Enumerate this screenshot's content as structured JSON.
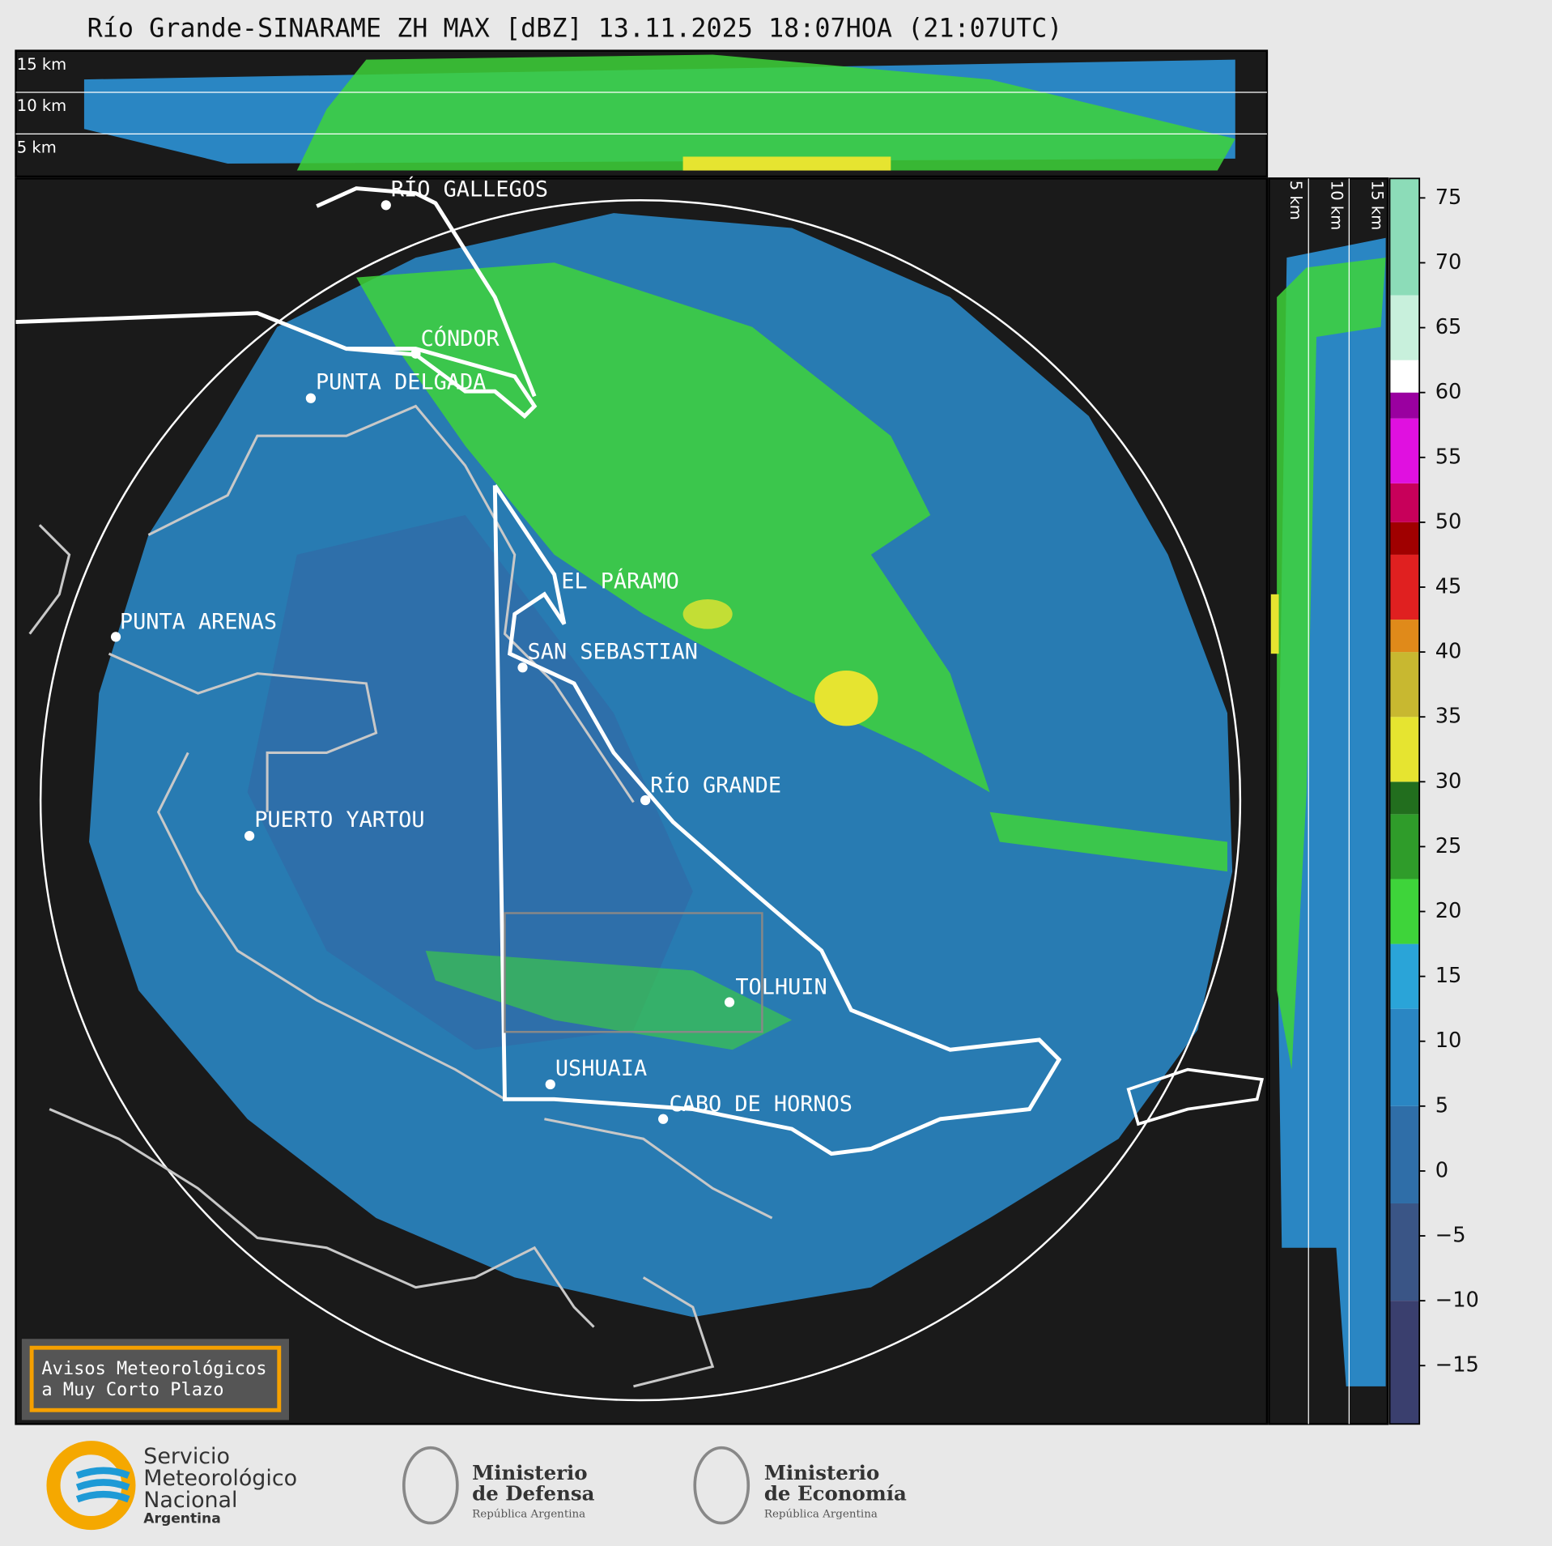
{
  "header": {
    "title": "Río Grande-SINARAME ZH MAX [dBZ] 13.11.2025 18:07HOA (21:07UTC)"
  },
  "top_profile": {
    "labels": [
      "15 km",
      "10 km",
      "5 km"
    ]
  },
  "side_profile": {
    "labels": [
      "5 km",
      "10 km",
      "15 km"
    ]
  },
  "map": {
    "places": [
      "RÍO GALLEGOS",
      "CÓNDOR",
      "PUNTA DELGADA",
      "EL PÁRAMO",
      "PUNTA ARENAS",
      "SAN SEBASTIAN",
      "RÍO GRANDE",
      "PUERTO YARTOU",
      "TOLHUIN",
      "USHUAIA",
      "CABO DE HORNOS"
    ]
  },
  "notice": {
    "lines": [
      "Avisos Meteorológicos",
      "a Muy Corto Plazo"
    ]
  },
  "colorbar": {
    "lim": [
      -19.5,
      76.5
    ],
    "ticks": [
      75,
      70,
      65,
      60,
      55,
      50,
      45,
      40,
      35,
      30,
      25,
      20,
      15,
      10,
      5,
      0,
      {
        "value": -5,
        "label": "−5"
      },
      {
        "value": -10,
        "label": "−10"
      },
      {
        "value": -15,
        "label": "−15"
      }
    ],
    "bands": [
      {
        "from": -19.5,
        "to": -10,
        "color": "#3a3f6e"
      },
      {
        "from": -10,
        "to": -2.5,
        "color": "#3a5586"
      },
      {
        "from": -2.5,
        "to": 5,
        "color": "#2f6ea8"
      },
      {
        "from": 5,
        "to": 12.5,
        "color": "#2a86c3"
      },
      {
        "from": 12.5,
        "to": 17.5,
        "color": "#2aa4d8"
      },
      {
        "from": 17.5,
        "to": 22.5,
        "color": "#3ed43a"
      },
      {
        "from": 22.5,
        "to": 27.5,
        "color": "#2f9c2a"
      },
      {
        "from": 27.5,
        "to": 30,
        "color": "#226e1e"
      },
      {
        "from": 30,
        "to": 35,
        "color": "#e6e430"
      },
      {
        "from": 35,
        "to": 40,
        "color": "#c8b830"
      },
      {
        "from": 40,
        "to": 42.5,
        "color": "#e08a1a"
      },
      {
        "from": 42.5,
        "to": 47.5,
        "color": "#e02020"
      },
      {
        "from": 47.5,
        "to": 50,
        "color": "#a00000"
      },
      {
        "from": 50,
        "to": 53,
        "color": "#c8005a"
      },
      {
        "from": 53,
        "to": 58,
        "color": "#e010e0"
      },
      {
        "from": 58,
        "to": 60,
        "color": "#9a00a0"
      },
      {
        "from": 60,
        "to": 62.5,
        "color": "#ffffff"
      },
      {
        "from": 62.5,
        "to": 67.5,
        "color": "#c8f0dc"
      },
      {
        "from": 67.5,
        "to": 76.5,
        "color": "#8cdcb8"
      }
    ]
  },
  "logos": {
    "smn": [
      "Servicio",
      "Meteorológico",
      "Nacional",
      "Argentina"
    ],
    "defensa": [
      "Ministerio",
      "de Defensa",
      "República Argentina"
    ],
    "economia": [
      "Ministerio",
      "de Economía",
      "República Argentina"
    ]
  }
}
